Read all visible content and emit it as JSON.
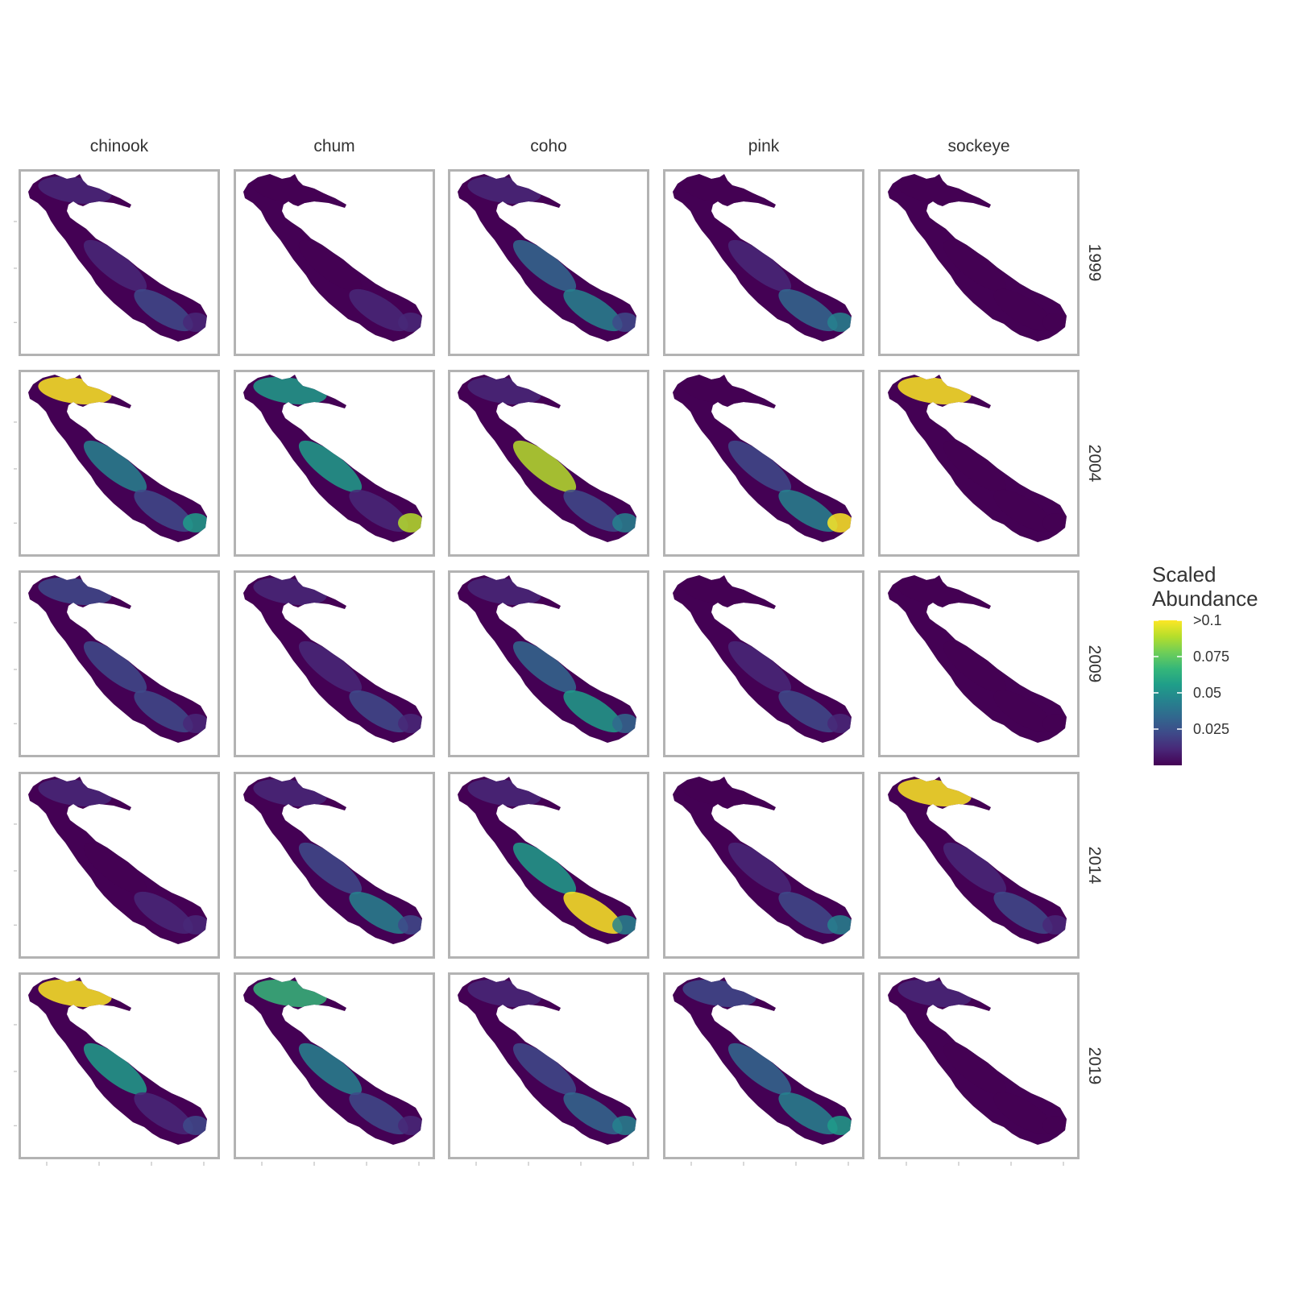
{
  "chart_data": {
    "type": "heatmap",
    "title": "",
    "xlabel": "",
    "ylabel": "",
    "column_facets": [
      "chinook",
      "chum",
      "coho",
      "pink",
      "sockeye"
    ],
    "row_facets": [
      "1999",
      "2004",
      "2009",
      "2014",
      "2019"
    ],
    "legend": {
      "title_lines": [
        "Scaled",
        "Abundance"
      ],
      "placement": "right",
      "range": [
        0,
        0.1
      ],
      "ticks": [
        {
          "value": 0.1,
          "label": ">0.1"
        },
        {
          "value": 0.075,
          "label": "0.075"
        },
        {
          "value": 0.05,
          "label": "0.05"
        },
        {
          "value": 0.025,
          "label": "0.025"
        }
      ],
      "palette": [
        "#440154",
        "#482878",
        "#3e4a89",
        "#31688e",
        "#26828e",
        "#1f9e89",
        "#35b779",
        "#6ece58",
        "#b5de2b",
        "#fde725"
      ]
    },
    "panels": [
      {
        "species": "chinook",
        "year": "1999",
        "north": 0.015,
        "mid": 0.008,
        "south": 0.02,
        "east": 0.01
      },
      {
        "species": "chum",
        "year": "1999",
        "north": 0.004,
        "mid": 0.004,
        "south": 0.015,
        "east": 0.006
      },
      {
        "species": "coho",
        "year": "1999",
        "north": 0.012,
        "mid": 0.03,
        "south": 0.04,
        "east": 0.025
      },
      {
        "species": "pink",
        "year": "1999",
        "north": 0.004,
        "mid": 0.01,
        "south": 0.03,
        "east": 0.045
      },
      {
        "species": "sockeye",
        "year": "1999",
        "north": 0.002,
        "mid": 0.002,
        "south": 0.003,
        "east": 0.002
      },
      {
        "species": "chinook",
        "year": "2004",
        "north": 0.1,
        "mid": 0.04,
        "south": 0.02,
        "east": 0.06
      },
      {
        "species": "chum",
        "year": "2004",
        "north": 0.05,
        "mid": 0.06,
        "south": 0.01,
        "east": 0.09
      },
      {
        "species": "coho",
        "year": "2004",
        "north": 0.01,
        "mid": 0.09,
        "south": 0.02,
        "east": 0.04
      },
      {
        "species": "pink",
        "year": "2004",
        "north": 0.004,
        "mid": 0.02,
        "south": 0.04,
        "east": 0.1
      },
      {
        "species": "sockeye",
        "year": "2004",
        "north": 0.1,
        "mid": 0.004,
        "south": 0.003,
        "east": 0.003
      },
      {
        "species": "chinook",
        "year": "2009",
        "north": 0.02,
        "mid": 0.02,
        "south": 0.02,
        "east": 0.015
      },
      {
        "species": "chum",
        "year": "2009",
        "north": 0.01,
        "mid": 0.015,
        "south": 0.02,
        "east": 0.01
      },
      {
        "species": "coho",
        "year": "2009",
        "north": 0.015,
        "mid": 0.03,
        "south": 0.05,
        "east": 0.03
      },
      {
        "species": "pink",
        "year": "2009",
        "north": 0.004,
        "mid": 0.015,
        "south": 0.02,
        "east": 0.015
      },
      {
        "species": "sockeye",
        "year": "2009",
        "north": 0.002,
        "mid": 0.002,
        "south": 0.002,
        "east": 0.002
      },
      {
        "species": "chinook",
        "year": "2014",
        "north": 0.006,
        "mid": 0.005,
        "south": 0.008,
        "east": 0.006
      },
      {
        "species": "chum",
        "year": "2014",
        "north": 0.015,
        "mid": 0.02,
        "south": 0.04,
        "east": 0.02
      },
      {
        "species": "coho",
        "year": "2014",
        "north": 0.015,
        "mid": 0.06,
        "south": 0.1,
        "east": 0.04
      },
      {
        "species": "pink",
        "year": "2014",
        "north": 0.004,
        "mid": 0.015,
        "south": 0.02,
        "east": 0.04
      },
      {
        "species": "sockeye",
        "year": "2014",
        "north": 0.1,
        "mid": 0.01,
        "south": 0.02,
        "east": 0.01
      },
      {
        "species": "chinook",
        "year": "2019",
        "north": 0.1,
        "mid": 0.05,
        "south": 0.01,
        "east": 0.02
      },
      {
        "species": "chum",
        "year": "2019",
        "north": 0.07,
        "mid": 0.04,
        "south": 0.02,
        "east": 0.01
      },
      {
        "species": "coho",
        "year": "2019",
        "north": 0.01,
        "mid": 0.02,
        "south": 0.03,
        "east": 0.04
      },
      {
        "species": "pink",
        "year": "2019",
        "north": 0.02,
        "mid": 0.03,
        "south": 0.04,
        "east": 0.05
      },
      {
        "species": "sockeye",
        "year": "2019",
        "north": 0.01,
        "mid": 0.003,
        "south": 0.003,
        "east": 0.004
      }
    ]
  }
}
